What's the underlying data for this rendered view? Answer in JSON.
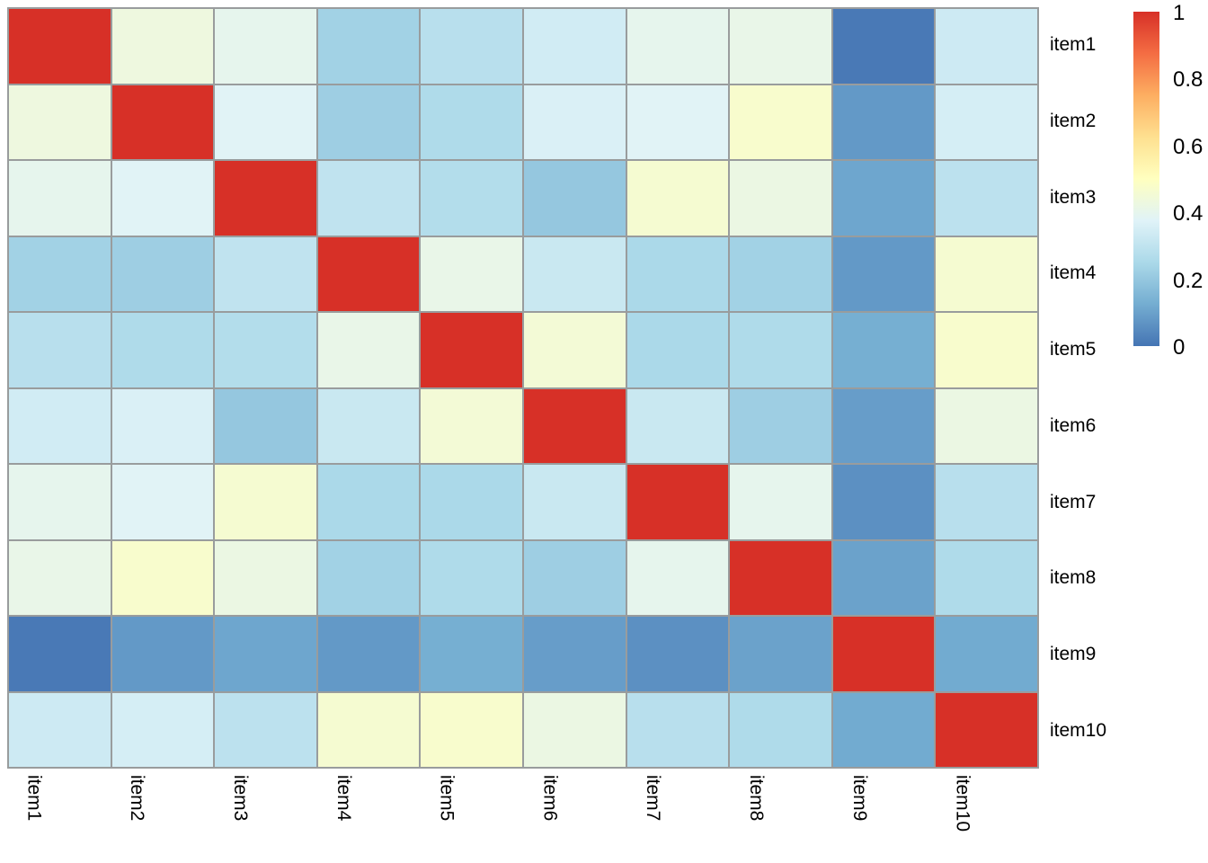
{
  "figure": {
    "background": "#ffffff",
    "text_color": "#000000",
    "grid_line_color": "#999c9d"
  },
  "chart_data": {
    "type": "heatmap",
    "title": "",
    "categories": [
      "item1",
      "item2",
      "item3",
      "item4",
      "item5",
      "item6",
      "item7",
      "item8",
      "item9",
      "item10"
    ],
    "matrix": [
      [
        1.0,
        0.43,
        0.4,
        0.23,
        0.28,
        0.34,
        0.4,
        0.41,
        0.01,
        0.33
      ],
      [
        0.43,
        1.0,
        0.38,
        0.22,
        0.26,
        0.36,
        0.38,
        0.47,
        0.08,
        0.35
      ],
      [
        0.4,
        0.38,
        1.0,
        0.3,
        0.27,
        0.2,
        0.46,
        0.42,
        0.11,
        0.29
      ],
      [
        0.23,
        0.22,
        0.3,
        1.0,
        0.41,
        0.32,
        0.25,
        0.23,
        0.08,
        0.46
      ],
      [
        0.28,
        0.26,
        0.27,
        0.41,
        1.0,
        0.45,
        0.25,
        0.26,
        0.13,
        0.47
      ],
      [
        0.34,
        0.36,
        0.2,
        0.32,
        0.45,
        1.0,
        0.32,
        0.22,
        0.09,
        0.42
      ],
      [
        0.4,
        0.38,
        0.46,
        0.25,
        0.25,
        0.32,
        1.0,
        0.4,
        0.06,
        0.28
      ],
      [
        0.41,
        0.47,
        0.42,
        0.23,
        0.26,
        0.22,
        0.4,
        1.0,
        0.1,
        0.26
      ],
      [
        0.01,
        0.08,
        0.11,
        0.08,
        0.13,
        0.09,
        0.06,
        0.1,
        1.0,
        0.12
      ],
      [
        0.33,
        0.35,
        0.29,
        0.46,
        0.47,
        0.42,
        0.28,
        0.26,
        0.12,
        1.0
      ]
    ],
    "value_range": [
      0,
      1
    ],
    "row_label_side": "right",
    "col_label_rotation_deg": 90,
    "legend_position": "right",
    "colormap_stops": [
      "#4575b4",
      "#74add1",
      "#abd9e9",
      "#e0f3f8",
      "#ffffbf",
      "#fee090",
      "#fdae61",
      "#f46d43",
      "#d73027"
    ],
    "colorbar": {
      "tick_labels": [
        "1",
        "0.8",
        "0.6",
        "0.4",
        "0.2",
        "0"
      ],
      "tick_values": [
        1,
        0.8,
        0.6,
        0.4,
        0.2,
        0
      ]
    }
  }
}
